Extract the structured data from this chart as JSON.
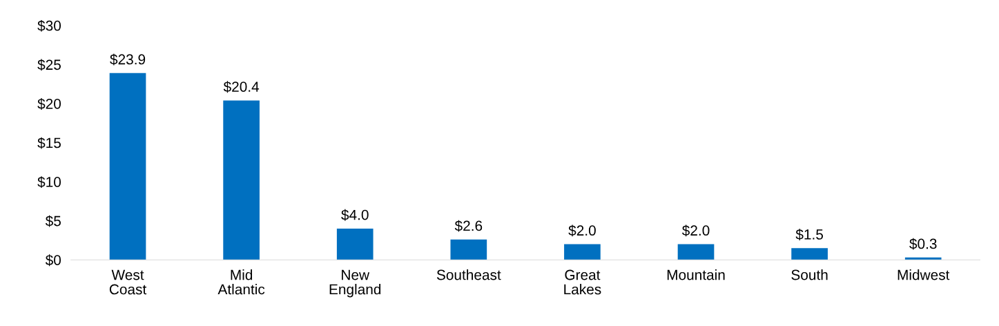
{
  "chart_data": {
    "type": "bar",
    "categories": [
      "West\nCoast",
      "Mid\nAtlantic",
      "New\nEngland",
      "Southeast",
      "Great\nLakes",
      "Mountain",
      "South",
      "Midwest"
    ],
    "values": [
      23.9,
      20.4,
      4.0,
      2.6,
      2.0,
      2.0,
      1.5,
      0.3
    ],
    "value_labels": [
      "$23.9",
      "$20.4",
      "$4.0",
      "$2.6",
      "$2.0",
      "$2.0",
      "$1.5",
      "$0.3"
    ],
    "color": "#0070c0",
    "ylim": [
      0,
      30
    ],
    "yticks": [
      {
        "value": 0,
        "label": "$0"
      },
      {
        "value": 5,
        "label": "$5"
      },
      {
        "value": 10,
        "label": "$10"
      },
      {
        "value": 15,
        "label": "$15"
      },
      {
        "value": 20,
        "label": "$20"
      },
      {
        "value": 25,
        "label": "$25"
      },
      {
        "value": 30,
        "label": "$30"
      }
    ],
    "grid": false,
    "legend": false
  }
}
